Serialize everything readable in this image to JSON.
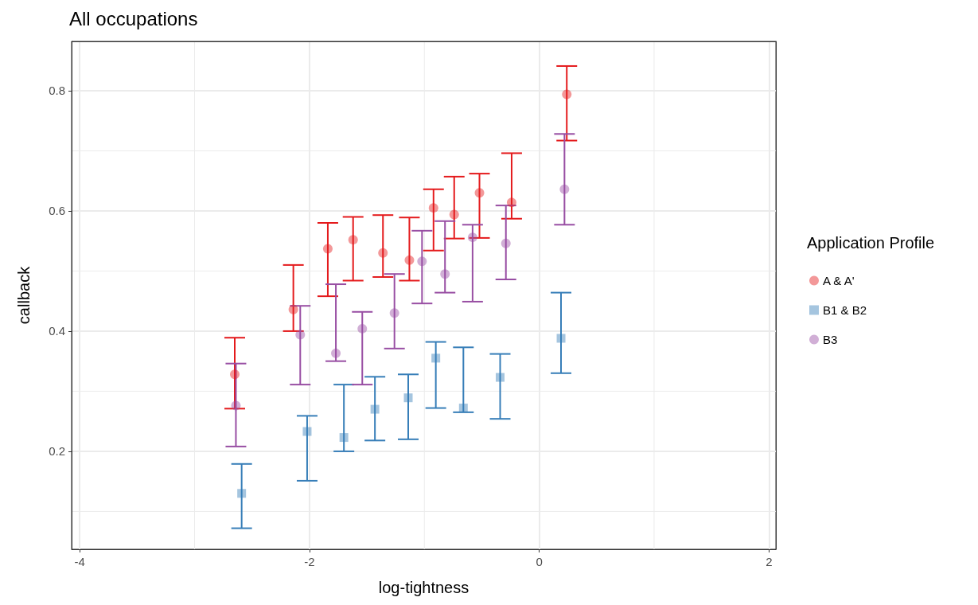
{
  "chart_data": {
    "type": "scatter",
    "title": "All occupations",
    "xlabel": "log-tightness",
    "ylabel": "callback",
    "legend_title": "Application Profile",
    "xlim": [
      -4.07,
      2.06
    ],
    "xticks": [
      -4,
      -2,
      0,
      2
    ],
    "ylim": [
      0.037,
      0.882
    ],
    "yticks": [
      0.2,
      0.4,
      0.6,
      0.8
    ],
    "grid": true,
    "legend": "right",
    "series": [
      {
        "name": "A & A'",
        "color": "#e41a1c",
        "marker": "circle",
        "x": [
          -2.65,
          -2.14,
          -1.84,
          -1.62,
          -1.36,
          -1.13,
          -0.92,
          -0.74,
          -0.52,
          -0.24,
          0.24
        ],
        "values": [
          0.328,
          0.436,
          0.537,
          0.552,
          0.53,
          0.518,
          0.605,
          0.594,
          0.63,
          0.614,
          0.794
        ],
        "errors": [
          [
            0.271,
            0.389
          ],
          [
            0.4,
            0.51
          ],
          [
            0.458,
            0.58
          ],
          [
            0.484,
            0.59
          ],
          [
            0.49,
            0.593
          ],
          [
            0.484,
            0.589
          ],
          [
            0.534,
            0.636
          ],
          [
            0.554,
            0.657
          ],
          [
            0.555,
            0.662
          ],
          [
            0.587,
            0.696
          ],
          [
            0.717,
            0.841
          ]
        ]
      },
      {
        "name": "B1 & B2",
        "color": "#377eb8",
        "marker": "square",
        "x": [
          -2.59,
          -2.02,
          -1.7,
          -1.43,
          -1.14,
          -0.9,
          -0.66,
          -0.34,
          0.19
        ],
        "values": [
          0.13,
          0.233,
          0.223,
          0.27,
          0.289,
          0.355,
          0.272,
          0.323,
          0.388
        ],
        "errors": [
          [
            0.072,
            0.179
          ],
          [
            0.151,
            0.259
          ],
          [
            0.2,
            0.311
          ],
          [
            0.218,
            0.324
          ],
          [
            0.22,
            0.328
          ],
          [
            0.272,
            0.382
          ],
          [
            0.265,
            0.373
          ],
          [
            0.254,
            0.362
          ],
          [
            0.33,
            0.464
          ]
        ]
      },
      {
        "name": "B3",
        "color": "#984ea3",
        "marker": "circle",
        "x": [
          -2.64,
          -2.08,
          -1.77,
          -1.54,
          -1.26,
          -1.02,
          -0.82,
          -0.58,
          -0.29,
          0.22
        ],
        "values": [
          0.276,
          0.394,
          0.363,
          0.404,
          0.43,
          0.516,
          0.495,
          0.556,
          0.546,
          0.636
        ],
        "errors": [
          [
            0.208,
            0.346
          ],
          [
            0.311,
            0.442
          ],
          [
            0.35,
            0.478
          ],
          [
            0.311,
            0.432
          ],
          [
            0.371,
            0.495
          ],
          [
            0.446,
            0.567
          ],
          [
            0.464,
            0.583
          ],
          [
            0.449,
            0.577
          ],
          [
            0.486,
            0.609
          ],
          [
            0.577,
            0.728
          ]
        ]
      }
    ]
  }
}
